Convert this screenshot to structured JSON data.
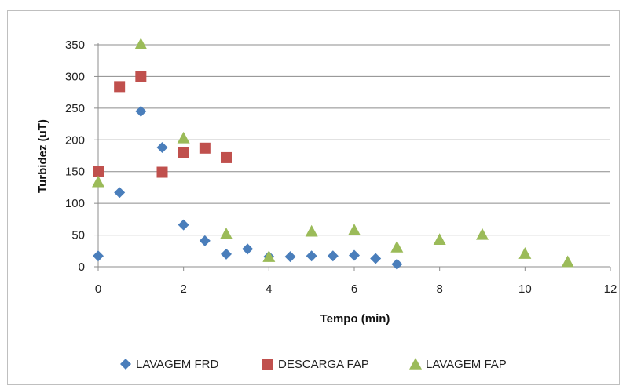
{
  "chart_data": {
    "type": "scatter",
    "title": "",
    "xlabel": "Tempo (min)",
    "ylabel": "Turbidez (uT)",
    "xlim": [
      0,
      12
    ],
    "ylim": [
      0,
      350
    ],
    "xticks": [
      0,
      2,
      4,
      6,
      8,
      10,
      12
    ],
    "yticks": [
      0,
      50,
      100,
      150,
      200,
      250,
      300,
      350
    ],
    "grid": "horizontal",
    "legend_position": "bottom",
    "series": [
      {
        "name": "LAVAGEM FRD",
        "marker": "diamond",
        "color": "#4a7ebb",
        "points": [
          [
            0,
            17
          ],
          [
            0.5,
            117
          ],
          [
            1,
            245
          ],
          [
            1.5,
            188
          ],
          [
            2,
            66
          ],
          [
            2.5,
            41
          ],
          [
            3,
            20
          ],
          [
            3.5,
            28
          ],
          [
            4,
            16
          ],
          [
            4.5,
            16
          ],
          [
            5,
            17
          ],
          [
            5.5,
            17
          ],
          [
            6,
            18
          ],
          [
            6.5,
            13
          ],
          [
            7,
            4
          ]
        ]
      },
      {
        "name": "DESCARGA FAP",
        "marker": "square",
        "color": "#c0504d",
        "points": [
          [
            0,
            150
          ],
          [
            0.5,
            284
          ],
          [
            1,
            300
          ],
          [
            1.5,
            149
          ],
          [
            2,
            180
          ],
          [
            2.5,
            187
          ],
          [
            3,
            172
          ]
        ]
      },
      {
        "name": "LAVAGEM FAP",
        "marker": "triangle",
        "color": "#9bbb59",
        "points": [
          [
            0,
            134
          ],
          [
            1,
            351
          ],
          [
            2,
            203
          ],
          [
            3,
            52
          ],
          [
            4,
            16
          ],
          [
            5,
            56
          ],
          [
            6,
            58
          ],
          [
            7,
            31
          ],
          [
            8,
            43
          ],
          [
            9,
            51
          ],
          [
            10,
            21
          ],
          [
            11,
            8
          ]
        ]
      }
    ]
  }
}
